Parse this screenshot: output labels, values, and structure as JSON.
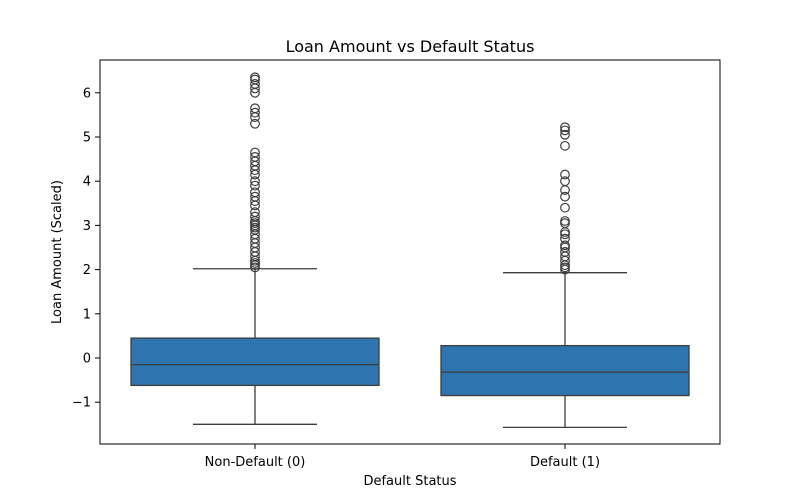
{
  "chart_data": {
    "type": "box",
    "title": "Loan Amount vs Default Status",
    "xlabel": "Default Status",
    "ylabel": "Loan Amount (Scaled)",
    "categories": [
      "Non-Default (0)",
      "Default (1)"
    ],
    "ylim": [
      -1.9,
      6.7
    ],
    "yticks": [
      -1,
      0,
      1,
      2,
      3,
      4,
      5,
      6
    ],
    "ytick_labels": [
      "−1",
      "0",
      "1",
      "2",
      "3",
      "4",
      "5",
      "6"
    ],
    "grid": false,
    "legend": "none",
    "colors": {
      "box_fill": "#2e75b0",
      "line": "#3d3d3d"
    },
    "boxes": [
      {
        "category": "Non-Default (0)",
        "whisker_low": -1.5,
        "q1": -0.62,
        "median": -0.15,
        "q3": 0.45,
        "whisker_high": 2.02,
        "outliers": [
          2.05,
          2.1,
          2.15,
          2.2,
          2.3,
          2.4,
          2.5,
          2.6,
          2.7,
          2.8,
          2.9,
          2.95,
          3.0,
          3.05,
          3.1,
          3.2,
          3.3,
          3.45,
          3.55,
          3.65,
          3.75,
          3.9,
          4.0,
          4.15,
          4.25,
          4.35,
          4.45,
          4.55,
          4.65,
          5.3,
          5.45,
          5.55,
          5.65,
          6.0,
          6.1,
          6.2,
          6.3,
          6.35
        ]
      },
      {
        "category": "Default (1)",
        "whisker_low": -1.57,
        "q1": -0.85,
        "median": -0.32,
        "q3": 0.28,
        "whisker_high": 1.93,
        "outliers": [
          2.0,
          2.05,
          2.1,
          2.2,
          2.3,
          2.4,
          2.5,
          2.55,
          2.7,
          2.8,
          2.85,
          3.05,
          3.1,
          3.4,
          3.65,
          3.8,
          4.0,
          4.15,
          4.8,
          5.05,
          5.15,
          5.22
        ]
      }
    ]
  }
}
